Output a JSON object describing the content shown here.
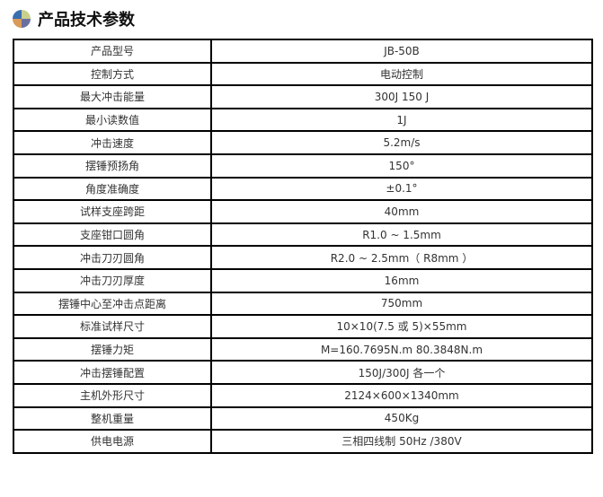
{
  "header": {
    "title": "产品技术参数",
    "icon": "quadrant-globe-icon"
  },
  "rows": [
    [
      "产品型号",
      "JB-50B"
    ],
    [
      "控制方式",
      "电动控制"
    ],
    [
      "最大冲击能量",
      "300J 150 J"
    ],
    [
      "最小读数值",
      "1J"
    ],
    [
      "冲击速度",
      "5.2m/s"
    ],
    [
      "摆锤预扬角",
      "150°"
    ],
    [
      "角度准确度",
      "±0.1°"
    ],
    [
      "试样支座跨距",
      "40mm"
    ],
    [
      "支座钳口圆角",
      "R1.0 ~ 1.5mm"
    ],
    [
      "冲击刀刃圆角",
      "R2.0 ~ 2.5mm（  R8mm ）"
    ],
    [
      "冲击刀刃厚度",
      "16mm"
    ],
    [
      "摆锤中心至冲击点距离",
      "750mm"
    ],
    [
      "标准试样尺寸",
      "10×10(7.5 或 5)×55mm"
    ],
    [
      "摆锤力矩",
      "M=160.7695N.m     80.3848N.m"
    ],
    [
      "冲击摆锤配置",
      "150J/300J 各一个"
    ],
    [
      "主机外形尺寸",
      "2124×600×1340mm"
    ],
    [
      "整机重量",
      "450Kg"
    ],
    [
      "供电电源",
      "三相四线制 50Hz /380V"
    ]
  ]
}
